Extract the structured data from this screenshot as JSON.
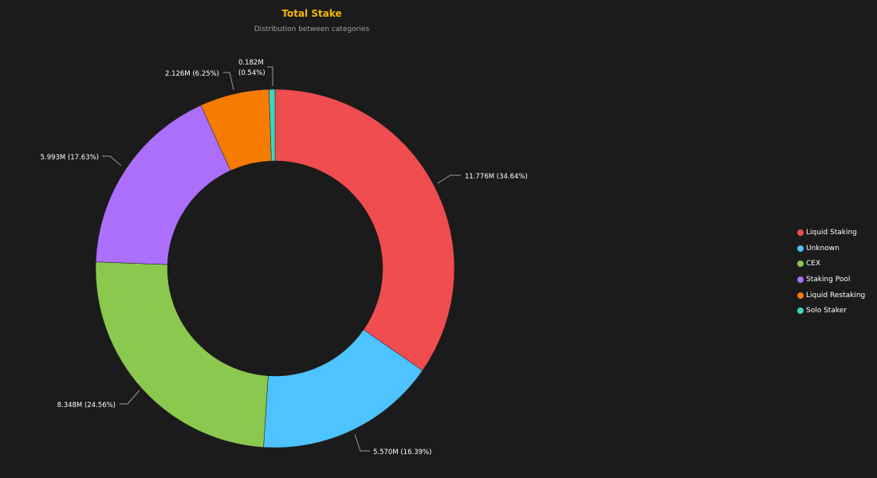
{
  "chart_data": {
    "type": "pie",
    "variant": "donut",
    "title": "Total Stake",
    "subtitle": "Distribution between categories",
    "legend_position": "right",
    "series": [
      {
        "name": "Liquid Staking",
        "value": 11.776,
        "label": "11.776M (34.64%)",
        "percent": 34.64,
        "color": "#ef4d4f"
      },
      {
        "name": "Unknown",
        "value": 5.57,
        "label": "5.570M (16.39%)",
        "percent": 16.39,
        "color": "#4dc3ff"
      },
      {
        "name": "CEX",
        "value": 8.348,
        "label": "8.348M (24.56%)",
        "percent": 24.56,
        "color": "#8bc94e"
      },
      {
        "name": "Staking Pool",
        "value": 5.993,
        "label": "5.993M (17.63%)",
        "percent": 17.63,
        "color": "#ab6ffc"
      },
      {
        "name": "Liquid Restaking",
        "value": 2.126,
        "label": "2.126M (6.25%)",
        "percent": 6.25,
        "color": "#f57c00"
      },
      {
        "name": "Solo Staker",
        "value": 0.182,
        "label": "0.182M (0.54%)",
        "label_lines": [
          "0.182M",
          "(0.54%)"
        ],
        "percent": 0.54,
        "color": "#3fd5c0"
      }
    ]
  }
}
